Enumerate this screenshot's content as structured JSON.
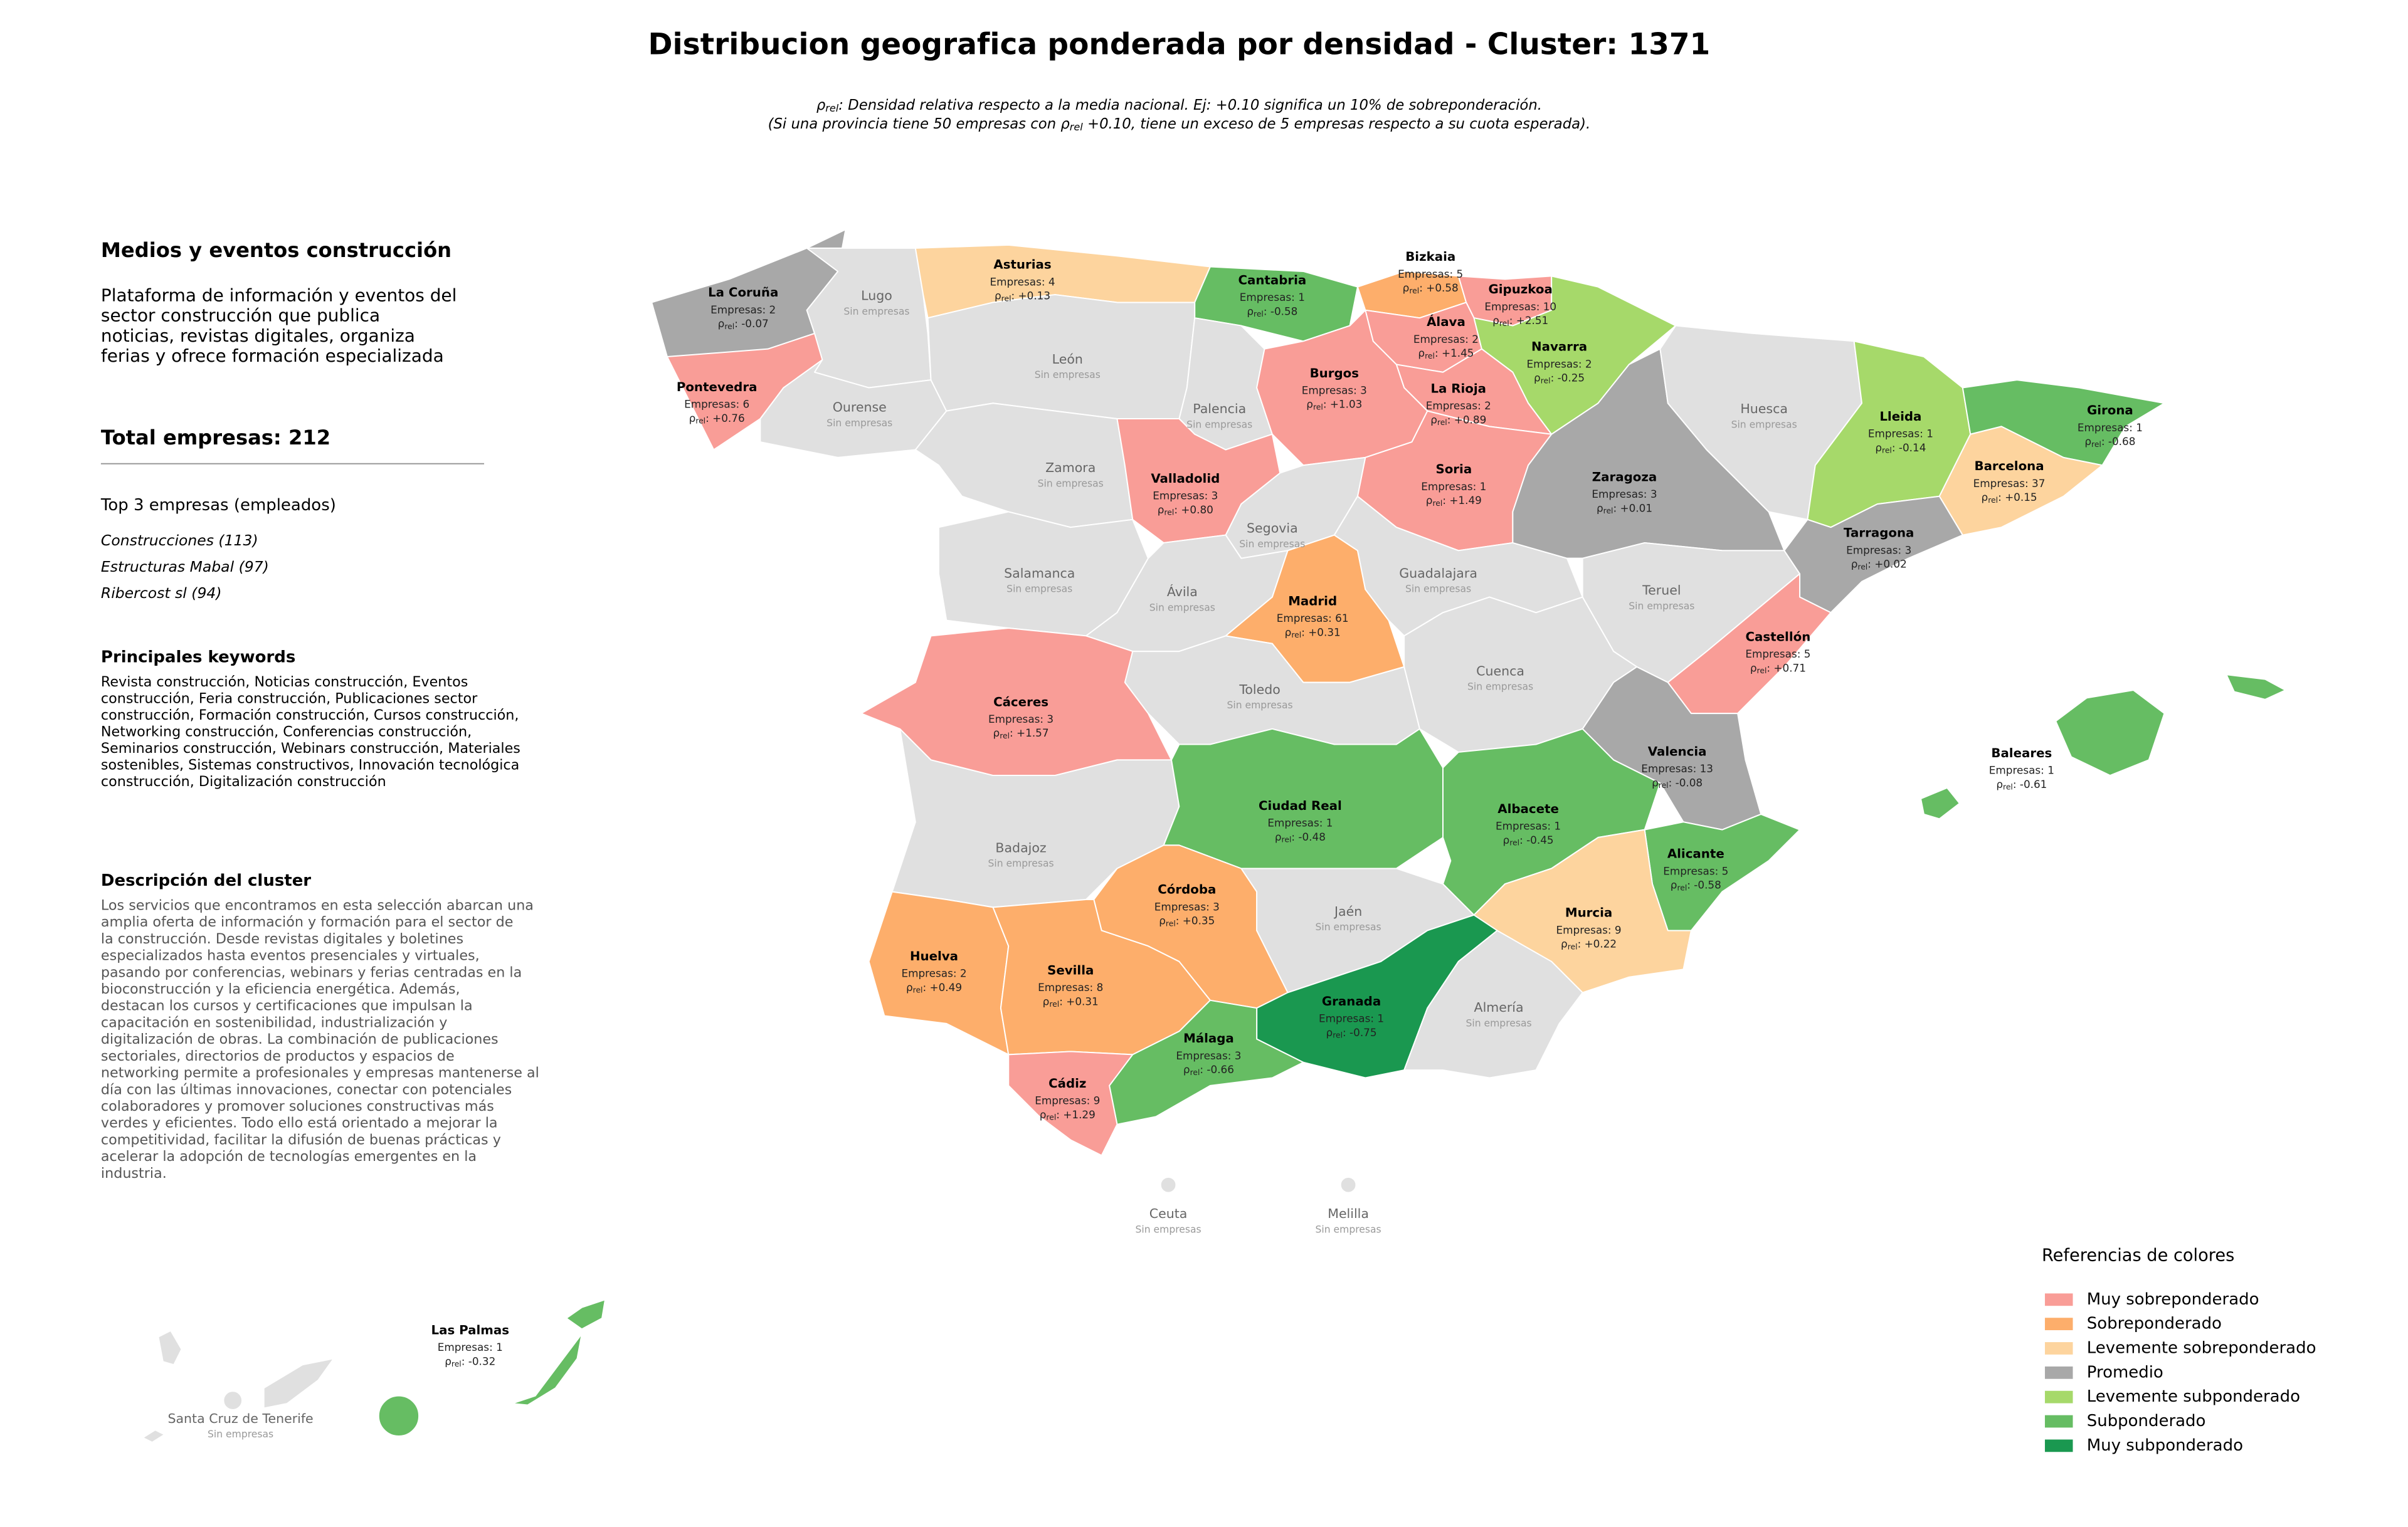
{
  "header": {
    "title": "Distribucion geografica ponderada por densidad - Cluster: 1371",
    "subtitle": [
      [
        {
          "text": "ρ"
        },
        {
          "text": "rel",
          "sub": true
        },
        {
          "text": ": Densidad relativa respecto a la media nacional. Ej: +0.10 significa un 10% de sobreponderación."
        }
      ],
      [
        {
          "text": "(Si una provincia tiene 50 empresas con "
        },
        {
          "text": "ρ"
        },
        {
          "text": "rel",
          "sub": true
        },
        {
          "text": " +0.10, tiene un exceso de 5 empresas respecto a su cuota esperada)."
        }
      ]
    ]
  },
  "sidebar": {
    "name": "Medios y eventos construcción",
    "description": [
      "Plataforma de información y eventos del",
      "sector construcción que publica",
      "noticias, revistas digitales, organiza",
      "ferias y ofrece formación especializada"
    ],
    "total": "Total empresas: 212",
    "top_title": "Top 3 empresas (empleados)",
    "top": [
      "Construcciones (113)",
      "Estructuras Mabal (97)",
      "Ribercost sl (94)"
    ],
    "keywords_title": "Principales keywords",
    "keywords": [
      "Revista construcción, Noticias construcción, Eventos",
      "construcción, Feria construcción, Publicaciones sector",
      "construcción, Formación construcción, Cursos construcción,",
      "Networking construcción, Conferencias construcción,",
      "Seminarios construcción, Webinars construcción, Materiales",
      "sostenibles, Sistemas constructivos, Innovación tecnológica",
      "construcción, Digitalización construcción"
    ],
    "cluster_title": "Descripción del cluster",
    "cluster_description": [
      "Los servicios que encontramos en esta selección abarcan una",
      "amplia oferta de información y formación para el sector de",
      "la construcción. Desde revistas digitales y boletines",
      "especializados hasta eventos presenciales y virtuales,",
      "pasando por conferencias, webinars y ferias centradas en la",
      "bioconstrucción y la eficiencia energética. Además,",
      "destacan los cursos y certificaciones que impulsan la",
      "capacitación en sostenibilidad, industrialización y",
      "digitalización de obras. La combinación de publicaciones",
      "sectoriales, directorios de productos y espacios de",
      "networking permite a profesionales y empresas mantenerse al",
      "día con las últimas innovaciones, conectar con potenciales",
      "colaboradores y promover soluciones constructivas más",
      "verdes y eficientes. Todo ello está orientado a mejorar la",
      "competitividad, facilitar la difusión de buenas prácticas y",
      "acelerar la adopción de tecnologías emergentes en la",
      "industria."
    ]
  },
  "map": {
    "density_symbol": "ρ",
    "density_subscript": "rel",
    "provinces": [
      {
        "name": "La Coruña",
        "companies": "Empresas: 2",
        "density": ": -0.07",
        "color": "#a8a8a8"
      },
      {
        "name": "Lugo",
        "companies": "Sin empresas",
        "color": "#e0e0e0"
      },
      {
        "name": "Pontevedra",
        "companies": "Empresas: 6",
        "density": ": +0.76",
        "color": "#f99d97"
      },
      {
        "name": "Ourense",
        "companies": "Sin empresas",
        "color": "#e0e0e0"
      },
      {
        "name": "Asturias",
        "companies": "Empresas: 4",
        "density": ": +0.13",
        "color": "#fdd49e"
      },
      {
        "name": "Cantabria",
        "companies": "Empresas: 1",
        "density": ": -0.58",
        "color": "#66bd63"
      },
      {
        "name": "Bizkaia",
        "companies": "Empresas: 5",
        "density": ": +0.58",
        "color": "#fdae6b"
      },
      {
        "name": "Gipuzkoa",
        "companies": "Empresas: 10",
        "density": ": +2.51",
        "color": "#f99d97"
      },
      {
        "name": "Álava",
        "companies": "Empresas: 2",
        "density": ": +1.45",
        "color": "#f99d97"
      },
      {
        "name": "Navarra",
        "companies": "Empresas: 2",
        "density": ": -0.25",
        "color": "#a6d96a"
      },
      {
        "name": "La Rioja",
        "companies": "Empresas: 2",
        "density": ": +0.89",
        "color": "#f99d97"
      },
      {
        "name": "León",
        "companies": "Sin empresas",
        "color": "#e0e0e0"
      },
      {
        "name": "Palencia",
        "companies": "Sin empresas",
        "color": "#e0e0e0"
      },
      {
        "name": "Burgos",
        "companies": "Empresas: 3",
        "density": ": +1.03",
        "color": "#f99d97"
      },
      {
        "name": "Zamora",
        "companies": "Sin empresas",
        "color": "#e0e0e0"
      },
      {
        "name": "Valladolid",
        "companies": "Empresas: 3",
        "density": ": +0.80",
        "color": "#f99d97"
      },
      {
        "name": "Soria",
        "companies": "Empresas: 1",
        "density": ": +1.49",
        "color": "#f99d97"
      },
      {
        "name": "Segovia",
        "companies": "Sin empresas",
        "color": "#e0e0e0"
      },
      {
        "name": "Salamanca",
        "companies": "Sin empresas",
        "color": "#e0e0e0"
      },
      {
        "name": "Ávila",
        "companies": "Sin empresas",
        "color": "#e0e0e0"
      },
      {
        "name": "Madrid",
        "companies": "Empresas: 61",
        "density": ": +0.31",
        "color": "#fdae6b"
      },
      {
        "name": "Guadalajara",
        "companies": "Sin empresas",
        "color": "#e0e0e0"
      },
      {
        "name": "Zaragoza",
        "companies": "Empresas: 3",
        "density": ": +0.01",
        "color": "#a8a8a8"
      },
      {
        "name": "Huesca",
        "companies": "Sin empresas",
        "color": "#e0e0e0"
      },
      {
        "name": "Teruel",
        "companies": "Sin empresas",
        "color": "#e0e0e0"
      },
      {
        "name": "Lleida",
        "companies": "Empresas: 1",
        "density": ": -0.14",
        "color": "#a6d96a"
      },
      {
        "name": "Girona",
        "companies": "Empresas: 1",
        "density": ": -0.68",
        "color": "#66bd63"
      },
      {
        "name": "Barcelona",
        "companies": "Empresas: 37",
        "density": ": +0.15",
        "color": "#fdd49e"
      },
      {
        "name": "Tarragona",
        "companies": "Empresas: 3",
        "density": ": +0.02",
        "color": "#a8a8a8"
      },
      {
        "name": "Castellón",
        "companies": "Empresas: 5",
        "density": ": +0.71",
        "color": "#f99d97"
      },
      {
        "name": "Cuenca",
        "companies": "Sin empresas",
        "color": "#e0e0e0"
      },
      {
        "name": "Valencia",
        "companies": "Empresas: 13",
        "density": ": -0.08",
        "color": "#a8a8a8"
      },
      {
        "name": "Toledo",
        "companies": "Sin empresas",
        "color": "#e0e0e0"
      },
      {
        "name": "Cáceres",
        "companies": "Empresas: 3",
        "density": ": +1.57",
        "color": "#f99d97"
      },
      {
        "name": "Badajoz",
        "companies": "Sin empresas",
        "color": "#e0e0e0"
      },
      {
        "name": "Ciudad Real",
        "companies": "Empresas: 1",
        "density": ": -0.48",
        "color": "#66bd63"
      },
      {
        "name": "Albacete",
        "companies": "Empresas: 1",
        "density": ": -0.45",
        "color": "#66bd63"
      },
      {
        "name": "Alicante",
        "companies": "Empresas: 5",
        "density": ": -0.58",
        "color": "#66bd63"
      },
      {
        "name": "Murcia",
        "companies": "Empresas: 9",
        "density": ": +0.22",
        "color": "#fdd49e"
      },
      {
        "name": "Córdoba",
        "companies": "Empresas: 3",
        "density": ": +0.35",
        "color": "#fdae6b"
      },
      {
        "name": "Jaén",
        "companies": "Sin empresas",
        "color": "#e0e0e0"
      },
      {
        "name": "Huelva",
        "companies": "Empresas: 2",
        "density": ": +0.49",
        "color": "#fdae6b"
      },
      {
        "name": "Sevilla",
        "companies": "Empresas: 8",
        "density": ": +0.31",
        "color": "#fdae6b"
      },
      {
        "name": "Granada",
        "companies": "Empresas: 1",
        "density": ": -0.75",
        "color": "#1a9850"
      },
      {
        "name": "Almería",
        "companies": "Sin empresas",
        "color": "#e0e0e0"
      },
      {
        "name": "Málaga",
        "companies": "Empresas: 3",
        "density": ": -0.66",
        "color": "#66bd63"
      },
      {
        "name": "Cádiz",
        "companies": "Empresas: 9",
        "density": ": +1.29",
        "color": "#f99d97"
      },
      {
        "name": "Baleares",
        "companies": "Empresas: 1",
        "density": ": -0.61",
        "color": "#66bd63"
      },
      {
        "name": "Las Palmas",
        "companies": "Empresas: 1",
        "density": ": -0.32",
        "color": "#66bd63"
      },
      {
        "name": "Santa Cruz de Tenerife",
        "companies": "Sin empresas",
        "color": "#e0e0e0"
      },
      {
        "name": "Ceuta",
        "companies": "Sin empresas",
        "color": "#e0e0e0"
      },
      {
        "name": "Melilla",
        "companies": "Sin empresas",
        "color": "#e0e0e0"
      }
    ]
  },
  "legend": {
    "title": "Referencias de colores",
    "items": [
      {
        "label": "Muy sobreponderado",
        "color": "#f99d97"
      },
      {
        "label": "Sobreponderado",
        "color": "#fdae6b"
      },
      {
        "label": "Levemente sobreponderado",
        "color": "#fdd49e"
      },
      {
        "label": "Promedio",
        "color": "#a8a8a8"
      },
      {
        "label": "Levemente subponderado",
        "color": "#a6d96a"
      },
      {
        "label": "Subponderado",
        "color": "#66bd63"
      },
      {
        "label": "Muy subponderado",
        "color": "#1a9850"
      }
    ]
  }
}
